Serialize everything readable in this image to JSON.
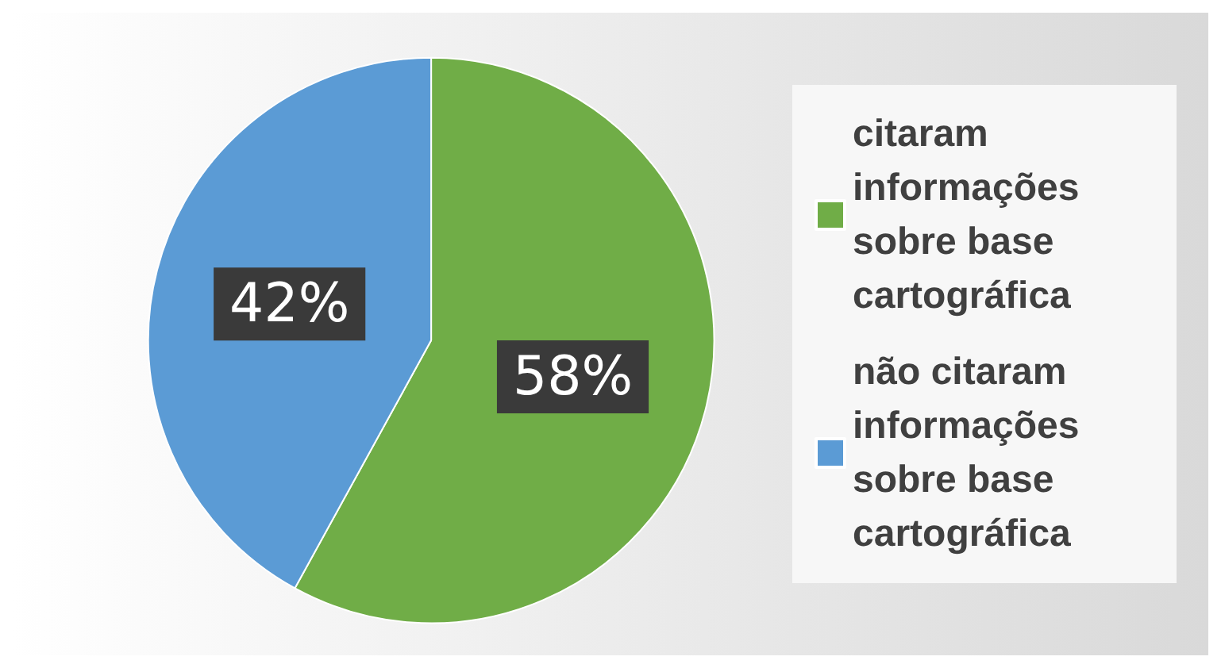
{
  "chart_data": {
    "type": "pie",
    "categories": [
      "citaram informações sobre base cartográfica",
      "não citaram informações sobre base cartográfica"
    ],
    "values": [
      58,
      42
    ],
    "colors": [
      "#70ad47",
      "#5b9bd5"
    ],
    "value_labels": [
      "58%",
      "42%"
    ],
    "legend": "right"
  }
}
